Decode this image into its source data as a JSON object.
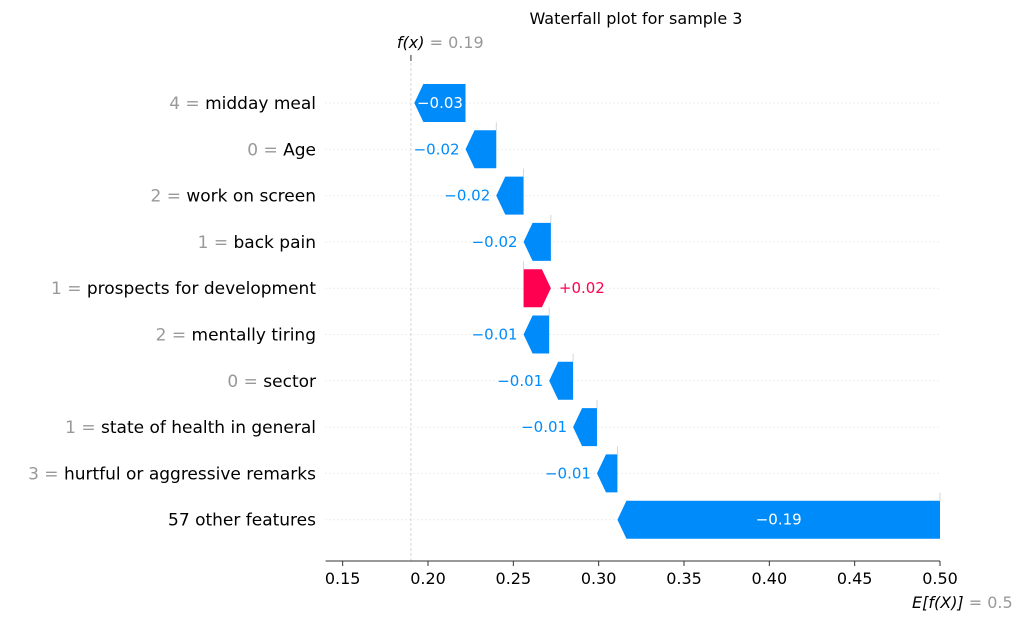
{
  "chart_data": {
    "type": "bar",
    "title": "Waterfall plot for sample 3",
    "fx": {
      "label": "f(x)",
      "value": 0.19,
      "value_text": "0.19"
    },
    "efx": {
      "label": "E[f(X)]",
      "value": 0.5,
      "value_text": "0.5"
    },
    "xlim": [
      0.14,
      0.5
    ],
    "xticks": [
      0.15,
      0.2,
      0.25,
      0.3,
      0.35,
      0.4,
      0.45,
      0.5
    ],
    "xtick_labels": [
      "0.15",
      "0.20",
      "0.25",
      "0.30",
      "0.35",
      "0.40",
      "0.45",
      "0.50"
    ],
    "features": [
      {
        "value": "4",
        "name": "midday meal",
        "start": 0.222,
        "end": 0.192,
        "label": "−0.03"
      },
      {
        "value": "0",
        "name": "Age",
        "start": 0.24,
        "end": 0.222,
        "label": "−0.02"
      },
      {
        "value": "2",
        "name": "work on screen",
        "start": 0.256,
        "end": 0.24,
        "label": "−0.02"
      },
      {
        "value": "1",
        "name": "back pain",
        "start": 0.272,
        "end": 0.256,
        "label": "−0.02"
      },
      {
        "value": "1",
        "name": "prospects for development",
        "start": 0.256,
        "end": 0.272,
        "label": "+0.02"
      },
      {
        "value": "2",
        "name": "mentally tiring",
        "start": 0.271,
        "end": 0.256,
        "label": "−0.01"
      },
      {
        "value": "0",
        "name": "sector",
        "start": 0.285,
        "end": 0.271,
        "label": "−0.01"
      },
      {
        "value": "1",
        "name": "state of health in general",
        "start": 0.299,
        "end": 0.285,
        "label": "−0.01"
      },
      {
        "value": "3",
        "name": "hurtful or aggressive remarks",
        "start": 0.311,
        "end": 0.299,
        "label": "−0.01"
      },
      {
        "value": "",
        "name": "57 other features",
        "start": 0.5,
        "end": 0.311,
        "label": "−0.19"
      }
    ],
    "colors": {
      "negative": "#008bfb",
      "positive": "#ff0051",
      "muted": "#999999",
      "grid": "#cccccc"
    }
  }
}
